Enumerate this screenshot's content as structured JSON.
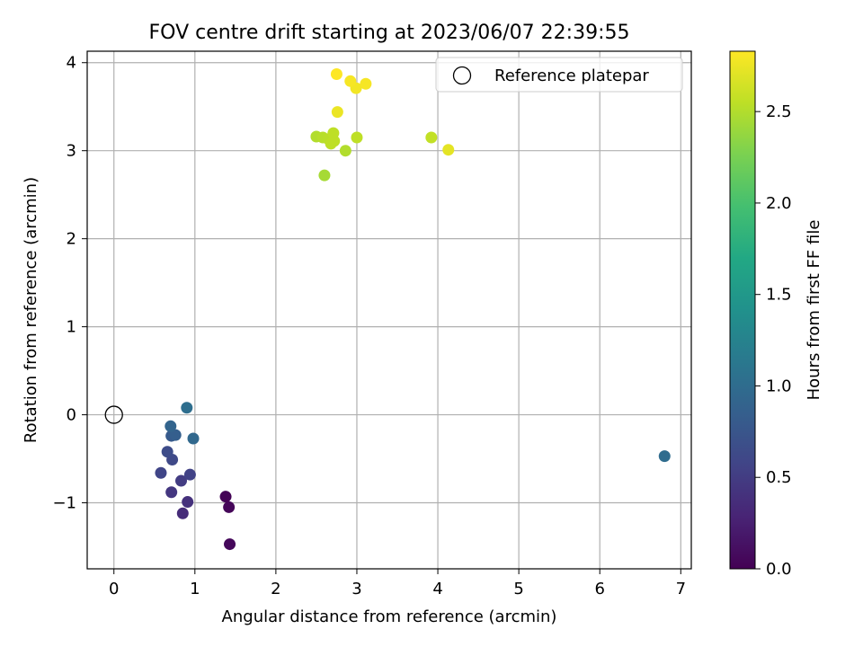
{
  "chart_data": {
    "type": "scatter",
    "title": "FOV centre drift starting at 2023/06/07 22:39:55",
    "xlabel": "Angular distance from reference (arcmin)",
    "ylabel": "Rotation from reference (arcmin)",
    "xlim": [
      -0.33,
      7.13
    ],
    "ylim": [
      -1.75,
      4.13
    ],
    "x_ticks": [
      0,
      1,
      2,
      3,
      4,
      5,
      6,
      7
    ],
    "y_ticks": [
      -1,
      0,
      1,
      2,
      3,
      4
    ],
    "grid": true,
    "legend": {
      "position": "top-right",
      "entries": [
        {
          "label": "Reference platepar",
          "marker": "open-circle"
        }
      ]
    },
    "reference_point": {
      "x": 0,
      "y": 0
    },
    "colorbar": {
      "label": "Hours from first FF file",
      "colormap": "viridis",
      "min": 0.0,
      "max": 2.83,
      "ticks": [
        0.0,
        0.5,
        1.0,
        1.5,
        2.0,
        2.5
      ]
    },
    "points": [
      {
        "x": 1.38,
        "y": -0.93,
        "hours": 0.02
      },
      {
        "x": 1.42,
        "y": -1.05,
        "hours": 0.04
      },
      {
        "x": 1.43,
        "y": -1.47,
        "hours": 0.06
      },
      {
        "x": 0.85,
        "y": -1.12,
        "hours": 0.35
      },
      {
        "x": 0.91,
        "y": -0.99,
        "hours": 0.4
      },
      {
        "x": 0.71,
        "y": -0.88,
        "hours": 0.45
      },
      {
        "x": 0.83,
        "y": -0.75,
        "hours": 0.5
      },
      {
        "x": 0.94,
        "y": -0.68,
        "hours": 0.55
      },
      {
        "x": 0.58,
        "y": -0.66,
        "hours": 0.58
      },
      {
        "x": 0.72,
        "y": -0.51,
        "hours": 0.62
      },
      {
        "x": 0.66,
        "y": -0.42,
        "hours": 0.65
      },
      {
        "x": 0.71,
        "y": -0.24,
        "hours": 0.8
      },
      {
        "x": 0.76,
        "y": -0.23,
        "hours": 0.85
      },
      {
        "x": 0.98,
        "y": -0.27,
        "hours": 0.95
      },
      {
        "x": 0.7,
        "y": -0.13,
        "hours": 0.9
      },
      {
        "x": 0.9,
        "y": 0.08,
        "hours": 1.02
      },
      {
        "x": 6.8,
        "y": -0.47,
        "hours": 1.0
      },
      {
        "x": 2.6,
        "y": 2.72,
        "hours": 2.45
      },
      {
        "x": 2.86,
        "y": 3.0,
        "hours": 2.5
      },
      {
        "x": 2.5,
        "y": 3.16,
        "hours": 2.5
      },
      {
        "x": 2.58,
        "y": 3.15,
        "hours": 2.52
      },
      {
        "x": 2.65,
        "y": 3.13,
        "hours": 2.53
      },
      {
        "x": 2.68,
        "y": 3.08,
        "hours": 2.55
      },
      {
        "x": 2.72,
        "y": 3.11,
        "hours": 2.55
      },
      {
        "x": 2.71,
        "y": 3.2,
        "hours": 2.55
      },
      {
        "x": 3.0,
        "y": 3.15,
        "hours": 2.55
      },
      {
        "x": 3.92,
        "y": 3.15,
        "hours": 2.57
      },
      {
        "x": 4.13,
        "y": 3.01,
        "hours": 2.72
      },
      {
        "x": 2.76,
        "y": 3.44,
        "hours": 2.75
      },
      {
        "x": 2.99,
        "y": 3.71,
        "hours": 2.78
      },
      {
        "x": 3.11,
        "y": 3.76,
        "hours": 2.8
      },
      {
        "x": 2.92,
        "y": 3.79,
        "hours": 2.8
      },
      {
        "x": 2.75,
        "y": 3.87,
        "hours": 2.83
      }
    ]
  }
}
